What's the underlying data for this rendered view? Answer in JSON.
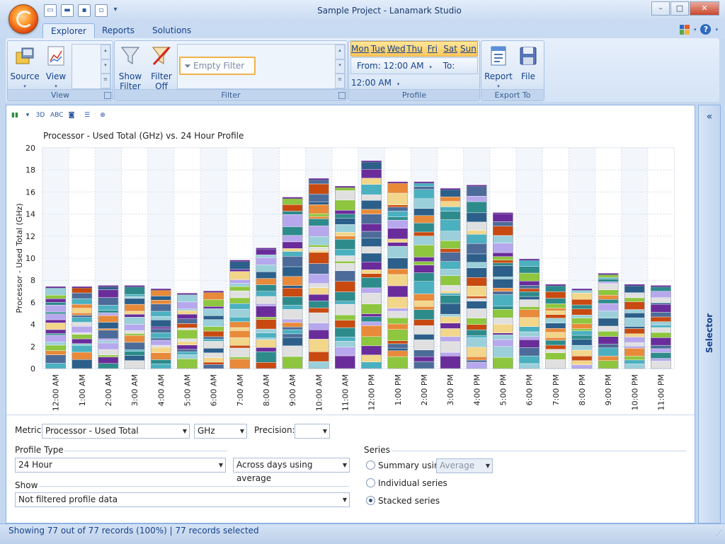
{
  "window": {
    "title": "Sample Project - Lanamark Studio"
  },
  "tabs": [
    {
      "label": "Explorer",
      "active": true
    },
    {
      "label": "Reports",
      "active": false
    },
    {
      "label": "Solutions",
      "active": false
    }
  ],
  "ribbon": {
    "view_group": {
      "label": "View",
      "source": "Source",
      "view": "View"
    },
    "filter_group": {
      "label": "Filter",
      "show_filter_1": "Show",
      "show_filter_2": "Filter",
      "filter_off_1": "Filter",
      "filter_off_2": "Off",
      "empty_filter": "Empty Filter"
    },
    "profile_group": {
      "label": "Profile",
      "days": [
        "Mon",
        "Tue",
        "Wed",
        "Thu",
        "Fri",
        "Sat",
        "Sun"
      ],
      "from": "From: 12:00 AM",
      "to": "To: 12:00 AM"
    },
    "export_group": {
      "label": "Export To",
      "report": "Report",
      "file": "File"
    }
  },
  "selector": {
    "label": "Selector"
  },
  "chart_data": {
    "type": "bar",
    "stacked": true,
    "title": "Processor - Used Total (GHz) vs. 24 Hour Profile",
    "xlabel": "",
    "ylabel": "Processor - Used Total (GHz)",
    "ylim": [
      0,
      20
    ],
    "yticks": [
      0,
      2,
      4,
      6,
      8,
      10,
      12,
      14,
      16,
      18,
      20
    ],
    "categories": [
      "12:00 AM",
      "1:00 AM",
      "2:00 AM",
      "3:00 AM",
      "4:00 AM",
      "5:00 AM",
      "6:00 AM",
      "7:00 AM",
      "8:00 AM",
      "9:00 AM",
      "10:00 AM",
      "11:00 AM",
      "12:00 PM",
      "1:00 PM",
      "2:00 PM",
      "3:00 PM",
      "4:00 PM",
      "5:00 PM",
      "6:00 PM",
      "7:00 PM",
      "8:00 PM",
      "9:00 PM",
      "10:00 PM",
      "11:00 PM"
    ],
    "values": [
      7.3,
      7.3,
      7.4,
      7.4,
      7.1,
      6.7,
      6.9,
      9.7,
      10.8,
      15.4,
      17.1,
      16.4,
      18.7,
      16.8,
      16.8,
      16.2,
      16.5,
      14.0,
      9.8,
      7.5,
      7.1,
      8.5,
      7.5,
      7.4
    ],
    "segment_colors": [
      "#c84a10",
      "#4bb0c0",
      "#b7a8ee",
      "#2c5f8a",
      "#8ec63f",
      "#f2d68a",
      "#4c6b98",
      "#2e8b8b",
      "#9bd0da",
      "#e0e0e0",
      "#e88a3a",
      "#6a2c9a"
    ],
    "grid": true
  },
  "controls": {
    "metric_label": "Metric:",
    "metric_value": "Processor - Used Total",
    "unit_value": "GHz",
    "precision_label": "Precision:",
    "precision_value": "",
    "profile_type_label": "Profile Type",
    "profile_type_value": "24 Hour",
    "across_value": "Across days using average",
    "show_label": "Show",
    "show_value": "Not filtered profile data",
    "series_label": "Series",
    "summary_label": "Summary using",
    "summary_value": "Average",
    "individual_label": "Individual series",
    "stacked_label": "Stacked series"
  },
  "status": {
    "text": "Showing 77 out of 77 records (100%) | 77 records selected"
  }
}
